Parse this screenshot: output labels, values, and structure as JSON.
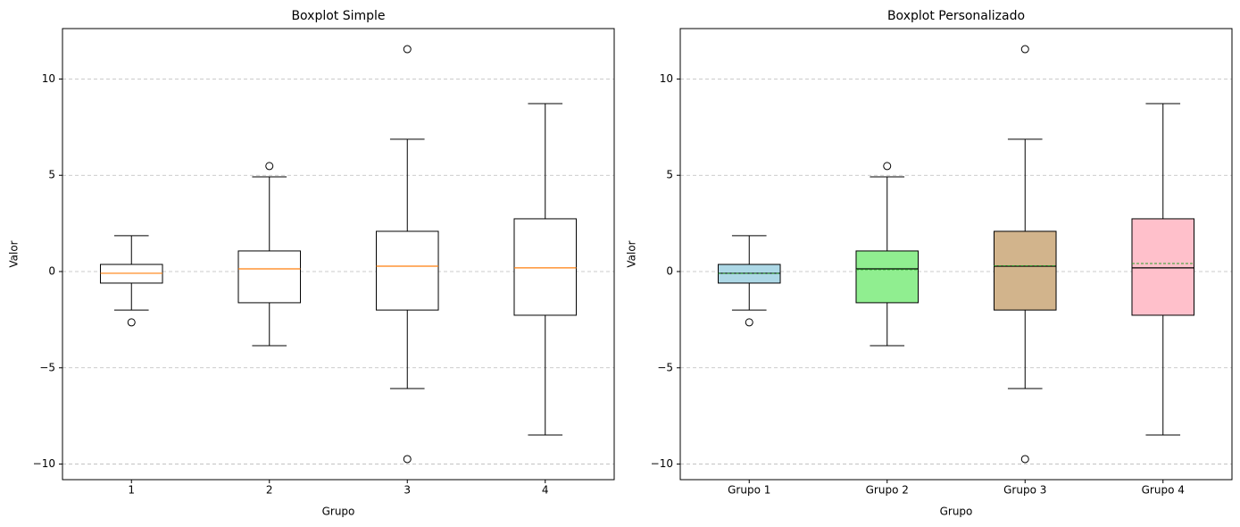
{
  "chart_data": [
    {
      "type": "box",
      "title": "Boxplot Simple",
      "xlabel": "Grupo",
      "ylabel": "Valor",
      "categories": [
        "1",
        "2",
        "3",
        "4"
      ],
      "boxes": [
        {
          "whislo": -2.0,
          "q1": -0.6,
          "med": -0.09,
          "q3": 0.37,
          "whishi": 1.86,
          "fliers": [
            -2.64
          ]
        },
        {
          "whislo": -3.85,
          "q1": -1.62,
          "med": 0.14,
          "q3": 1.07,
          "whishi": 4.92,
          "fliers": [
            5.48
          ]
        },
        {
          "whislo": -6.08,
          "q1": -2.0,
          "med": 0.28,
          "q3": 2.09,
          "whishi": 6.87,
          "fliers": [
            11.55,
            -9.74
          ]
        },
        {
          "whislo": -8.49,
          "q1": -2.27,
          "med": 0.19,
          "q3": 2.74,
          "whishi": 8.72,
          "fliers": []
        }
      ],
      "box_colors": [
        "#ffffff",
        "#ffffff",
        "#ffffff",
        "#ffffff"
      ],
      "median_color": "#ff7f0e",
      "ylim": [
        -10.81,
        12.62
      ],
      "yticks": [
        {
          "value": -10,
          "label": "−10"
        },
        {
          "value": -5,
          "label": "−5"
        },
        0,
        5,
        10
      ],
      "grid": true
    },
    {
      "type": "box",
      "title": "Boxplot Personalizado",
      "xlabel": "Grupo",
      "ylabel": "Valor",
      "categories": [
        "Grupo 1",
        "Grupo 2",
        "Grupo 3",
        "Grupo 4"
      ],
      "boxes": [
        {
          "whislo": -2.0,
          "q1": -0.6,
          "med": -0.09,
          "q3": 0.37,
          "whishi": 1.86,
          "fliers": [
            -2.64
          ]
        },
        {
          "whislo": -3.85,
          "q1": -1.62,
          "med": 0.14,
          "q3": 1.07,
          "whishi": 4.92,
          "fliers": [
            5.48
          ]
        },
        {
          "whislo": -6.08,
          "q1": -2.0,
          "med": 0.28,
          "q3": 2.09,
          "whishi": 6.87,
          "fliers": [
            11.55,
            -9.74
          ]
        },
        {
          "whislo": -8.49,
          "q1": -2.27,
          "med": 0.19,
          "q3": 2.74,
          "whishi": 8.72,
          "fliers": []
        }
      ],
      "means": [
        -0.1,
        0.1,
        0.3,
        0.42
      ],
      "box_colors": [
        "#add8e6",
        "#90ee90",
        "#d2b48c",
        "#ffc0cb"
      ],
      "median_color": "#000000",
      "mean_color": "#2ca02c",
      "ylim": [
        -10.81,
        12.62
      ],
      "yticks": [
        {
          "value": -10,
          "label": "−10"
        },
        {
          "value": -5,
          "label": "−5"
        },
        0,
        5,
        10
      ],
      "grid": true
    }
  ]
}
